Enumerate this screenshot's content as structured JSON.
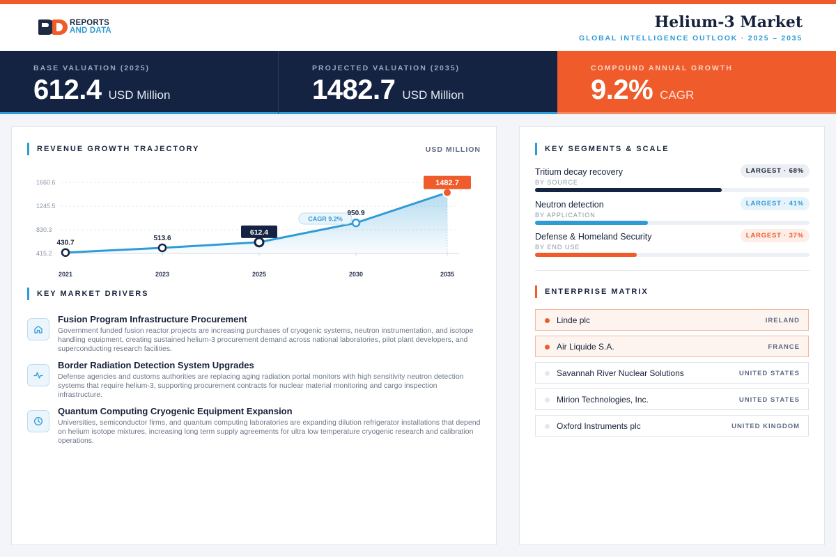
{
  "header": {
    "logo_line1": "REPORTS",
    "logo_line2": "AND DATA",
    "title": "Helium-3 Market",
    "subtitle": "GLOBAL INTELLIGENCE OUTLOOK  ·  2025 – 2035"
  },
  "kpis": [
    {
      "label": "BASE VALUATION (2025)",
      "value": "612.4",
      "unit": "USD Million"
    },
    {
      "label": "PROJECTED VALUATION (2035)",
      "value": "1482.7",
      "unit": "USD Million"
    },
    {
      "label": "COMPOUND ANNUAL GROWTH",
      "value": "9.2%",
      "unit": "CAGR"
    }
  ],
  "colors": {
    "navy": "#142341",
    "blue": "#2f9bd6",
    "orange": "#ef5b2b"
  },
  "chart_section": {
    "title": "REVENUE GROWTH TRAJECTORY",
    "unit": "USD MILLION"
  },
  "chart_data": {
    "type": "area",
    "x": [
      "2021",
      "2023",
      "2025",
      "2030",
      "2035"
    ],
    "values": [
      430.7,
      513.6,
      612.4,
      950.9,
      1482.7
    ],
    "data_labels": [
      "430.7",
      "513.6",
      "612.4",
      "950.9",
      "1482.7"
    ],
    "y_ticks": [
      "415.2",
      "830.3",
      "1245.5",
      "1660.6"
    ],
    "ylim": [
      415.2,
      1660.6
    ],
    "annotation": "CAGR 9.2%",
    "highlight": {
      "base_year": "2025",
      "final_year": "2035"
    },
    "grid": true
  },
  "drivers_section": {
    "title": "KEY MARKET DRIVERS",
    "items": [
      {
        "icon": "home-icon",
        "title": "Fusion Program Infrastructure Procurement",
        "text": "Government funded fusion reactor projects are increasing purchases of cryogenic systems, neutron instrumentation, and isotope handling equipment, creating sustained helium-3 procurement demand across national laboratories, pilot plant developers, and superconducting research facilities."
      },
      {
        "icon": "activity-icon",
        "title": "Border Radiation Detection System Upgrades",
        "text": "Defense agencies and customs authorities are replacing aging radiation portal monitors with high sensitivity neutron detection systems that require helium-3, supporting procurement contracts for nuclear material monitoring and cargo inspection infrastructure."
      },
      {
        "icon": "clock-icon",
        "title": "Quantum Computing Cryogenic Equipment Expansion",
        "text": "Universities, semiconductor firms, and quantum computing laboratories are expanding dilution refrigerator installations that depend on helium isotope mixtures, increasing long term supply agreements for ultra low temperature cryogenic research and calibration operations."
      }
    ]
  },
  "segments_section": {
    "title": "KEY SEGMENTS & SCALE",
    "items": [
      {
        "name": "Tritium decay recovery",
        "by": "BY SOURCE",
        "badge": "LARGEST · 68%",
        "share": 0.68,
        "color": "#142341",
        "badge_bg": "#eceef2",
        "badge_fg": "#16223a"
      },
      {
        "name": "Neutron detection",
        "by": "BY APPLICATION",
        "badge": "LARGEST · 41%",
        "share": 0.41,
        "color": "#2f9bd6",
        "badge_bg": "#e6f3fb",
        "badge_fg": "#2f9bd6"
      },
      {
        "name": "Defense & Homeland Security",
        "by": "BY END USE",
        "badge": "LARGEST · 37%",
        "share": 0.37,
        "color": "#ef5b2b",
        "badge_bg": "#fdeee7",
        "badge_fg": "#ef5b2b"
      }
    ]
  },
  "enterprise_section": {
    "title": "ENTERPRISE MATRIX",
    "items": [
      {
        "name": "Linde plc",
        "country": "IRELAND",
        "highlight": true
      },
      {
        "name": "Air Liquide S.A.",
        "country": "FRANCE",
        "highlight": true
      },
      {
        "name": "Savannah River Nuclear Solutions",
        "country": "UNITED STATES",
        "highlight": false
      },
      {
        "name": "Mirion Technologies, Inc.",
        "country": "UNITED STATES",
        "highlight": false
      },
      {
        "name": "Oxford Instruments plc",
        "country": "UNITED KINGDOM",
        "highlight": false
      }
    ]
  }
}
